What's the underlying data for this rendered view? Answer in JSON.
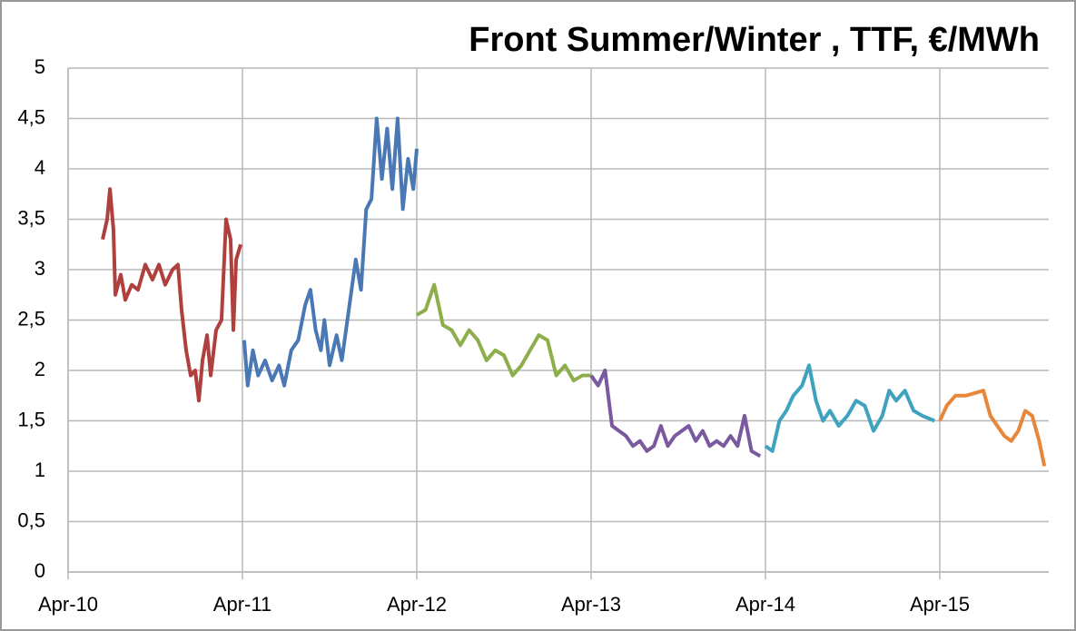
{
  "chart_data": {
    "type": "line",
    "title": "Front Summer/Winter , TTF, €/MWh",
    "xlim": [
      2010.25,
      2015.875
    ],
    "xticks": [
      {
        "value": 2010.25,
        "label": "Apr-10"
      },
      {
        "value": 2011.25,
        "label": "Apr-11"
      },
      {
        "value": 2012.25,
        "label": "Apr-12"
      },
      {
        "value": 2013.25,
        "label": "Apr-13"
      },
      {
        "value": 2014.25,
        "label": "Apr-14"
      },
      {
        "value": 2015.25,
        "label": "Apr-15"
      }
    ],
    "ylim": [
      0,
      5
    ],
    "yticks": [
      0,
      {
        "value": 0.5,
        "label": "0,5"
      },
      1,
      {
        "value": 1.5,
        "label": "1,5"
      },
      2,
      {
        "value": 2.5,
        "label": "2,5"
      },
      3,
      {
        "value": 3.5,
        "label": "3,5"
      },
      4,
      {
        "value": 4.5,
        "label": "4,5"
      },
      5
    ],
    "grid": true,
    "series": [
      {
        "color": "#b0403d",
        "x": [
          2010.448,
          2010.474,
          2010.49,
          2010.51,
          2010.521,
          2010.552,
          2010.578,
          2010.615,
          2010.651,
          2010.693,
          2010.734,
          2010.771,
          2010.807,
          2010.849,
          2010.88,
          2010.901,
          2010.927,
          2010.953,
          2010.979,
          2011.0,
          2011.021,
          2011.047,
          2011.068,
          2011.099,
          2011.13,
          2011.156,
          2011.182,
          2011.198,
          2011.214,
          2011.24
        ],
        "values": [
          3.3,
          3.5,
          3.8,
          3.4,
          2.75,
          2.95,
          2.7,
          2.85,
          2.8,
          3.05,
          2.9,
          3.05,
          2.85,
          3.0,
          3.05,
          2.6,
          2.2,
          1.95,
          2.0,
          1.7,
          2.1,
          2.35,
          1.95,
          2.4,
          2.5,
          3.5,
          3.3,
          2.4,
          3.1,
          3.25
        ]
      },
      {
        "color": "#4a78b5",
        "x": [
          2011.26,
          2011.28,
          2011.31,
          2011.34,
          2011.38,
          2011.42,
          2011.46,
          2011.49,
          2011.53,
          2011.57,
          2011.61,
          2011.64,
          2011.67,
          2011.7,
          2011.72,
          2011.75,
          2011.79,
          2011.82,
          2011.86,
          2011.9,
          2011.93,
          2011.96,
          2011.99,
          2012.02,
          2012.05,
          2012.08,
          2012.11,
          2012.14,
          2012.17,
          2012.2,
          2012.23,
          2012.25
        ],
        "values": [
          2.3,
          1.85,
          2.2,
          1.95,
          2.1,
          1.9,
          2.05,
          1.85,
          2.2,
          2.3,
          2.65,
          2.8,
          2.4,
          2.2,
          2.5,
          2.05,
          2.35,
          2.1,
          2.6,
          3.1,
          2.8,
          3.6,
          3.7,
          4.5,
          3.9,
          4.4,
          3.8,
          4.5,
          3.6,
          4.1,
          3.8,
          4.2
        ]
      },
      {
        "color": "#8cae4b",
        "x": [
          2012.25,
          2012.3,
          2012.35,
          2012.4,
          2012.45,
          2012.5,
          2012.55,
          2012.6,
          2012.65,
          2012.7,
          2012.75,
          2012.8,
          2012.85,
          2012.9,
          2012.95,
          2013.0,
          2013.05,
          2013.1,
          2013.15,
          2013.2,
          2013.25
        ],
        "values": [
          2.55,
          2.6,
          2.85,
          2.45,
          2.4,
          2.25,
          2.4,
          2.3,
          2.1,
          2.2,
          2.15,
          1.95,
          2.05,
          2.2,
          2.35,
          2.3,
          1.95,
          2.05,
          1.9,
          1.95,
          1.95
        ]
      },
      {
        "color": "#7a5a9f",
        "x": [
          2013.25,
          2013.29,
          2013.33,
          2013.37,
          2013.41,
          2013.45,
          2013.49,
          2013.53,
          2013.57,
          2013.61,
          2013.65,
          2013.69,
          2013.73,
          2013.77,
          2013.81,
          2013.85,
          2013.89,
          2013.93,
          2013.97,
          2014.01,
          2014.05,
          2014.09,
          2014.13,
          2014.17,
          2014.22
        ],
        "values": [
          1.95,
          1.85,
          2.0,
          1.45,
          1.4,
          1.35,
          1.25,
          1.3,
          1.2,
          1.25,
          1.45,
          1.25,
          1.35,
          1.4,
          1.45,
          1.3,
          1.4,
          1.25,
          1.3,
          1.25,
          1.35,
          1.25,
          1.55,
          1.2,
          1.15
        ]
      },
      {
        "color": "#3fa2bf",
        "x": [
          2014.25,
          2014.29,
          2014.33,
          2014.37,
          2014.41,
          2014.46,
          2014.5,
          2014.54,
          2014.58,
          2014.62,
          2014.67,
          2014.72,
          2014.77,
          2014.82,
          2014.87,
          2014.92,
          2014.96,
          2015.0,
          2015.05,
          2015.1,
          2015.15,
          2015.22
        ],
        "values": [
          1.25,
          1.2,
          1.5,
          1.6,
          1.75,
          1.85,
          2.05,
          1.7,
          1.5,
          1.6,
          1.45,
          1.55,
          1.7,
          1.65,
          1.4,
          1.55,
          1.8,
          1.7,
          1.8,
          1.6,
          1.55,
          1.5
        ]
      },
      {
        "color": "#e8873a",
        "x": [
          2015.25,
          2015.29,
          2015.34,
          2015.4,
          2015.46,
          2015.5,
          2015.54,
          2015.58,
          2015.62,
          2015.66,
          2015.7,
          2015.74,
          2015.78,
          2015.82,
          2015.85
        ],
        "values": [
          1.5,
          1.65,
          1.75,
          1.75,
          1.78,
          1.8,
          1.55,
          1.45,
          1.35,
          1.3,
          1.4,
          1.6,
          1.55,
          1.3,
          1.05
        ]
      }
    ]
  }
}
